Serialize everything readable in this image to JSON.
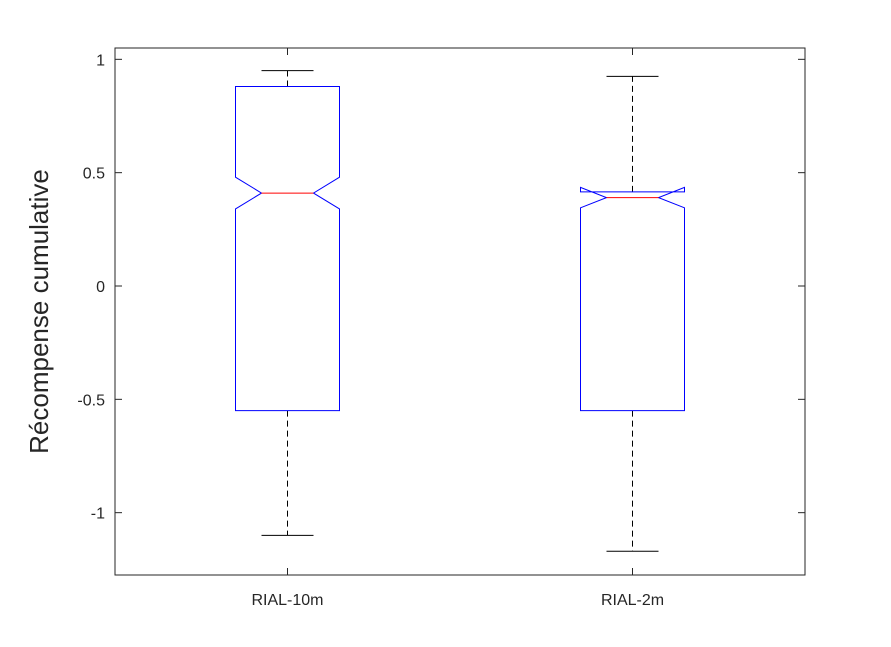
{
  "chart_data": {
    "type": "boxplot",
    "title": "",
    "xlabel": "",
    "ylabel": "Récompense cumulative",
    "ylim": [
      -1.275,
      1.05
    ],
    "yticks": [
      -1,
      -0.5,
      0,
      0.5,
      1
    ],
    "ytick_labels": [
      "-1",
      "-0.5",
      "0",
      "0.5",
      "1"
    ],
    "categories": [
      "RIAL-10m",
      "RIAL-2m"
    ],
    "notched": true,
    "grid": false,
    "boxes": [
      {
        "name": "RIAL-10m",
        "whisker_low": -1.1,
        "q1": -0.55,
        "median": 0.41,
        "q3": 0.88,
        "whisker_high": 0.95,
        "notch_low": 0.34,
        "notch_high": 0.48
      },
      {
        "name": "RIAL-2m",
        "whisker_low": -1.17,
        "q1": -0.55,
        "median": 0.39,
        "q3": 0.415,
        "whisker_high": 0.925,
        "notch_low": 0.345,
        "notch_high": 0.435
      }
    ],
    "colors": {
      "box": "#0000ff",
      "median": "#ff0000",
      "whisker": "#000000",
      "axis": "#262626"
    }
  }
}
